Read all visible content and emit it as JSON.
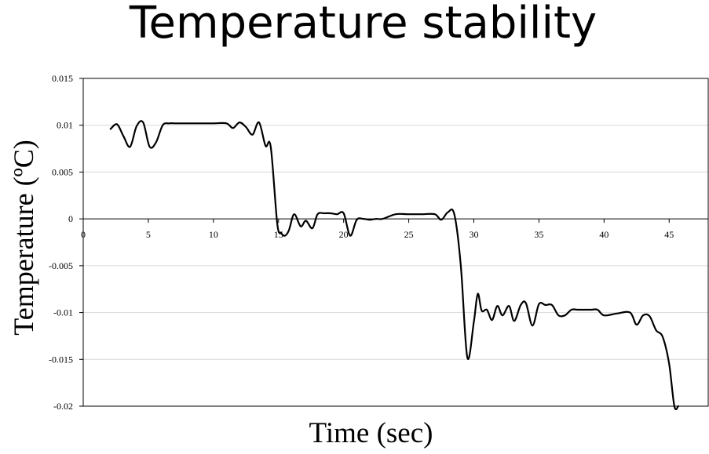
{
  "chart_data": {
    "type": "line",
    "title": "Temperature stability",
    "xlabel": "Time (sec)",
    "ylabel": "Temperature (ºC)",
    "xlim": [
      0,
      48
    ],
    "ylim": [
      -0.02,
      0.015
    ],
    "xticks": [
      0,
      5,
      10,
      15,
      20,
      25,
      30,
      35,
      40,
      45
    ],
    "xtick_labels": [
      "0",
      "5",
      "10",
      "15",
      "20",
      "25",
      "30",
      "35",
      "40",
      "45"
    ],
    "yticks": [
      0.015,
      0.01,
      0.005,
      0,
      -0.005,
      -0.01,
      -0.015,
      -0.02
    ],
    "ytick_labels": [
      "0.015",
      "0.01",
      "0.005",
      "0",
      "-0.005",
      "-0.01",
      "-0.015",
      "-0.02"
    ],
    "grid": true,
    "legend": "none",
    "line_color": "#000000",
    "series": [
      {
        "x": [
          2.1,
          2.6,
          3.1,
          3.6,
          4.1,
          4.6,
          5.1,
          5.6,
          6.1,
          6.6,
          7.1,
          8,
          9,
          10,
          11,
          11.5,
          12,
          12.5,
          13,
          13.5,
          14,
          14.4,
          14.9,
          15.2,
          15.5,
          15.8,
          16.2,
          16.7,
          17.1,
          17.6,
          18,
          18.5,
          19,
          19.5,
          20,
          20.5,
          21,
          21.5,
          22,
          22.5,
          23,
          24,
          25,
          26,
          27,
          27.5,
          28,
          28.5,
          29,
          29.5,
          30,
          30.3,
          30.6,
          31,
          31.4,
          31.8,
          32.2,
          32.7,
          33.1,
          33.6,
          34,
          34.5,
          35,
          35.5,
          36,
          36.5,
          37,
          37.5,
          38,
          38.5,
          39,
          39.5,
          40,
          41,
          42,
          42.5,
          43,
          43.5,
          44,
          44.5,
          45,
          45.4,
          45.7
        ],
        "y": [
          0.0096,
          0.0101,
          0.0088,
          0.0077,
          0.0099,
          0.0103,
          0.0077,
          0.0082,
          0.01,
          0.0102,
          0.0102,
          0.0102,
          0.0102,
          0.0102,
          0.0102,
          0.0097,
          0.0103,
          0.0098,
          0.009,
          0.0103,
          0.0078,
          0.0077,
          -0.0005,
          -0.0015,
          -0.0018,
          -0.0012,
          0.0005,
          -0.0008,
          -0.0002,
          -0.001,
          0.0005,
          0.0006,
          0.0006,
          0.0005,
          0.0006,
          -0.0018,
          -0.0001,
          0.0,
          -0.0001,
          0.0,
          0.0,
          0.0005,
          0.0005,
          0.0005,
          0.0005,
          -0.0001,
          0.0007,
          0.0005,
          -0.005,
          -0.0148,
          -0.011,
          -0.008,
          -0.0098,
          -0.0097,
          -0.0108,
          -0.0093,
          -0.0103,
          -0.0093,
          -0.0109,
          -0.0092,
          -0.009,
          -0.0114,
          -0.0091,
          -0.0092,
          -0.0092,
          -0.0103,
          -0.0103,
          -0.0097,
          -0.0097,
          -0.0097,
          -0.0097,
          -0.0097,
          -0.0103,
          -0.0101,
          -0.01,
          -0.0113,
          -0.0103,
          -0.0104,
          -0.0119,
          -0.0126,
          -0.0155,
          -0.02,
          -0.0205
        ]
      }
    ]
  }
}
